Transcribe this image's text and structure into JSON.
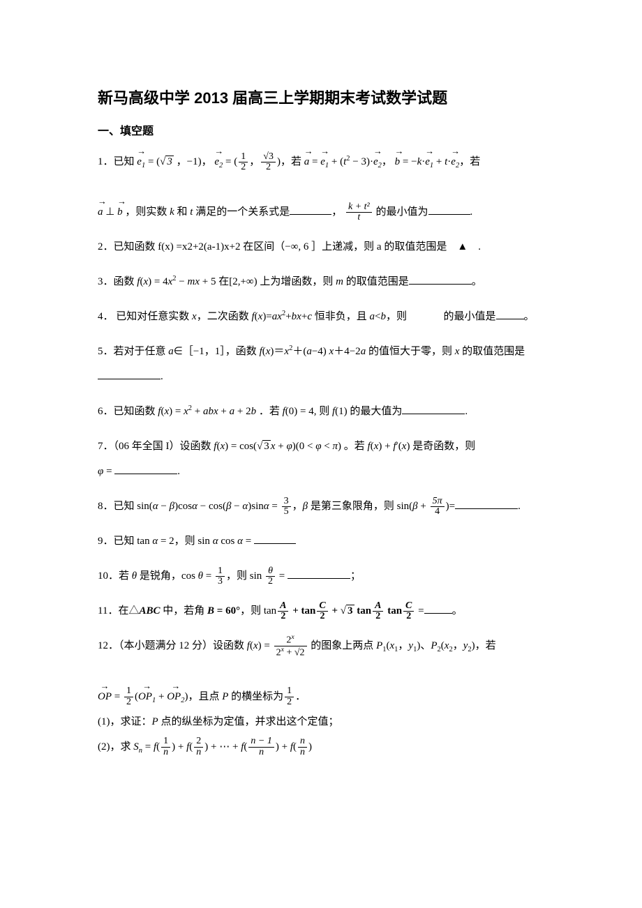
{
  "title": "新马高级中学 2013 届高三上学期期末考试数学试题",
  "section_header": "一、填空题",
  "problems": {
    "p1": {
      "num": "1．",
      "prefix": "已知",
      "e1_eq": " = (",
      "e1_a": "3",
      "e1_mid": " ，−1)，",
      "e2_eq": " = (",
      "e2_a_num": "1",
      "e2_a_den": "2",
      "e2_mid": "，",
      "e2_b_num": "3",
      "e2_b_den": "2",
      "e2_end": ")，若",
      "a_eq": " = ",
      "a_rhs_mid": " + (",
      "a_rhs_t": "t",
      "a_rhs_exp": "2",
      "a_rhs_minus": " − 3)·",
      "a_rhs_comma": "，",
      "b_eq": " = −",
      "b_k": "k",
      "b_mid": "·",
      "b_plus": " + ",
      "b_t": "t",
      "b_end": "·",
      "b_comma": "，若",
      "line2_prefix": " ⊥ ",
      "line2_mid1": " ，则实数 ",
      "line2_k": "k",
      "line2_and": " 和 ",
      "line2_t": "t",
      "line2_txt1": " 满足的一个关系式是",
      "line2_comma": "，",
      "frac_num": "k + t²",
      "frac_den": "t",
      "line2_txt2": " 的最小值为",
      "line2_end": "."
    },
    "p2": {
      "num": "2．",
      "txt1": "已知函数 f(x) =x2+2(a-1)x+2 在区间（−∞, 6 ］上递减，则 a 的取值范围是　",
      "tri": "▲",
      "txt2": "　."
    },
    "p3": {
      "num": "3．",
      "txt1": "函数 ",
      "fx": "f",
      "x": "x",
      "eq": "(",
      "eq2": ") = 4",
      "exp": "2",
      "minus": " − ",
      "m": "m",
      "plus": " + 5 在[2,+∞) 上为增函数，则 ",
      "m2": "m",
      "txt2": " 的取值范围是",
      "end": "。"
    },
    "p4": {
      "num": "4．",
      "txt1": " 已知对任意实数 ",
      "x": "x",
      "txt2": "，二次函数 ",
      "fx": "f",
      "eq": "(",
      "eq2": ")=",
      "a": "a",
      "exp": "2",
      "plus": "+",
      "b": "b",
      "plus2": "+",
      "c": "c",
      "txt3": " 恒非负，且 ",
      "lt": "<",
      "txt4": "，则",
      "txt5": "的最小值是",
      "end": "。"
    },
    "p5": {
      "num": "5．",
      "txt1": "若对于任意 ",
      "a": "a",
      "txt2": "∈［−1，1］，函数 ",
      "fx": "f",
      "x": "x",
      "eq": "(",
      "eq2": ")＝",
      "exp": "2",
      "plus": "＋(",
      "minus": "−4) ",
      "plus2": "＋4−2",
      "txt3": " 的值恒大于零，则 ",
      "txt4": " 的取值范围是",
      "end": "."
    },
    "p6": {
      "num": "6．",
      "txt1": "已知函数 ",
      "fx": "f",
      "x": "x",
      "eq": "(",
      "eq2": ") = ",
      "exp": "2",
      "plus": " + ",
      "a": "a",
      "b": "b",
      "plus2": " + ",
      "plus3": " + 2",
      "txt2": " ．若 ",
      "f0": "(0) = 4, 则 ",
      "f1": "(1) 的最大值为",
      "end": "."
    },
    "p7": {
      "num": "7．",
      "txt1": "（06 年全国 I）设函数 ",
      "fx": "f",
      "x": "x",
      "eq": "(",
      "eq2": ") = cos(",
      "sqrt3": "3",
      "plus": " + ",
      "phi": "φ",
      "cond": ")(0 < ",
      "lt": " < ",
      "pi": "π",
      "end1": ")",
      "txt2": " 。若 ",
      "plus2": " + ",
      "prime": "′(",
      "txt3": " 是奇函数，则",
      "phi2": "φ",
      "eq3": " = ",
      "end": "."
    },
    "p8": {
      "num": "8．",
      "txt1": "已知 sin(",
      "alpha": "α",
      "minus": " − ",
      "beta": "β",
      "txt2": ")cos",
      "minus2": " − cos(",
      "txt3": ")sin",
      "eq": " = ",
      "frac_num": "3",
      "frac_den": "5",
      "txt4": "，",
      "txt5": " 是第三象限角，则 sin(",
      "plus": " + ",
      "frac2_num": "5π",
      "frac2_den": "4",
      "txt6": ")=",
      "end": "."
    },
    "p9": {
      "num": "9．",
      "txt1": "已知 tan ",
      "alpha": "α",
      "eq": " = 2，则 sin ",
      "txt2": " cos ",
      "eq2": " = "
    },
    "p10": {
      "num": "10．",
      "txt1": "若 ",
      "theta": "θ",
      "txt2": " 是锐角，cos ",
      "eq": " = ",
      "frac_num": "1",
      "frac_den": "3",
      "txt3": "，则 sin ",
      "frac2_num": "θ",
      "frac2_den": "2",
      "eq2": " = ",
      "end": "；"
    },
    "p11": {
      "num": "11．",
      "txt1": "在△",
      "ABC": "ABC",
      "txt2": " 中，若角 ",
      "B": "B",
      "eq": " = 60°",
      "txt3": "，则 tan",
      "A": "A",
      "den2": "2",
      "plus": " + tan",
      "C": "C",
      "plus2": " + ",
      "sqrt3": "3",
      "txt4": " tan",
      "txt5": " tan",
      "eq2": " =",
      "end": "。"
    },
    "p12": {
      "num": "12．",
      "txt1": "（本小题满分 12 分）设函数 ",
      "fx": "f",
      "x": "x",
      "eq": "(",
      "eq2": ") = ",
      "num_2x": "2",
      "den_plus": " + ",
      "sqrt2": "2",
      "txt2": " 的图象上两点 ",
      "P1": "P",
      "sub1": "1",
      "txt3": "(",
      "x1": "x",
      "y1": "y",
      "txt4": ")、",
      "P2": "P",
      "sub2": "2",
      "txt5": ")，若",
      "OP": "OP",
      "eq3": " = ",
      "half_num": "1",
      "half_den": "2",
      "lparen": "(",
      "plus": " + ",
      "rparen": ")",
      "txt6": "，且点 ",
      "P": "P",
      "txt7": " 的横坐标为",
      "end": "．",
      "part1_num": "(1)，",
      "part1_txt": "求证：",
      "part1_txt2": " 点的纵坐标为定值，并求出这个定值；",
      "part2_num": "(2)，",
      "part2_txt": "求 ",
      "Sn": "S",
      "n": "n",
      "eq4": " = ",
      "f1_num": "1",
      "f2_num": "2",
      "dots": " + ⋯ + ",
      "fn1_num": "n − 1",
      "fn_num": "n"
    }
  }
}
